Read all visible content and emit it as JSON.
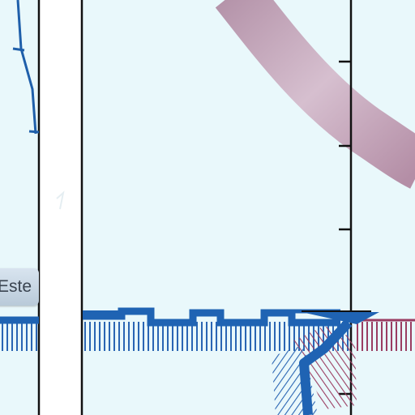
{
  "map": {
    "labels": {
      "street_label": "Este"
    },
    "colors": {
      "background": "#e9f8fb",
      "blue_route": "#1f5faa",
      "red_route": "#9a3d62",
      "pink_road": "#c7a9bd",
      "white_road": "#ffffff",
      "divider": "#111111"
    }
  }
}
